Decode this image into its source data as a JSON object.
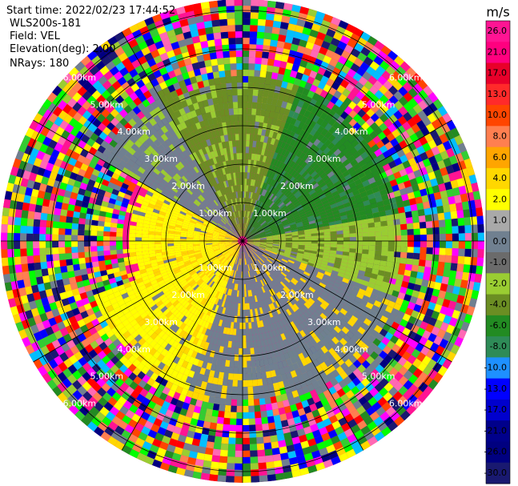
{
  "header": {
    "start_time": "Start time: 2022/02/23 17:44:52",
    "instrument": "WLS200s-181",
    "field": "Field: VEL",
    "elevation": "Elevation(deg): 2.00",
    "nrays": "NRays: 180"
  },
  "range_rings": {
    "unit": "km",
    "labels": [
      "1.00km",
      "2.00km",
      "3.00km",
      "4.00km",
      "5.00km",
      "6.00km"
    ]
  },
  "colorbar": {
    "unit": "m/s",
    "ticks": [
      "26.0",
      "21.0",
      "17.0",
      "13.0",
      "10.0",
      "8.0",
      "6.0",
      "4.0",
      "2.0",
      "1.0",
      "0.0",
      "-1.0",
      "-2.0",
      "-4.0",
      "-6.0",
      "-8.0",
      "-10.0",
      "-13.0",
      "-17.0",
      "-21.0",
      "-26.0",
      "-30.0"
    ],
    "colors": [
      "#ff1493",
      "#ff007f",
      "#e8002a",
      "#ff2a2a",
      "#ff4500",
      "#ff7f50",
      "#ffa500",
      "#ffd700",
      "#ffff00",
      "#a9a9a9",
      "#708090",
      "#6b6b6b",
      "#9acd32",
      "#6b8e23",
      "#228b22",
      "#2e8b57",
      "#1e90ff",
      "#0000ff",
      "#0000cd",
      "#00008b",
      "#000080",
      "#191970"
    ]
  },
  "palette": {
    "yellow": "#ffff00",
    "gold": "#ffd700",
    "gray": "#708090",
    "light_green": "#9acd32",
    "olive": "#6b8e23",
    "green": "#228b22",
    "sea_green": "#2e8b57",
    "noise": [
      "#ff1493",
      "#ff00ff",
      "#0000ff",
      "#000080",
      "#ffff00",
      "#ff0000",
      "#00ff00",
      "#ff69b4",
      "#ffd700",
      "#32cd32",
      "#ff4500",
      "#00bfff",
      "#228b22",
      "#ff7f50",
      "#708090",
      "#9acd32",
      "#191970"
    ]
  }
}
